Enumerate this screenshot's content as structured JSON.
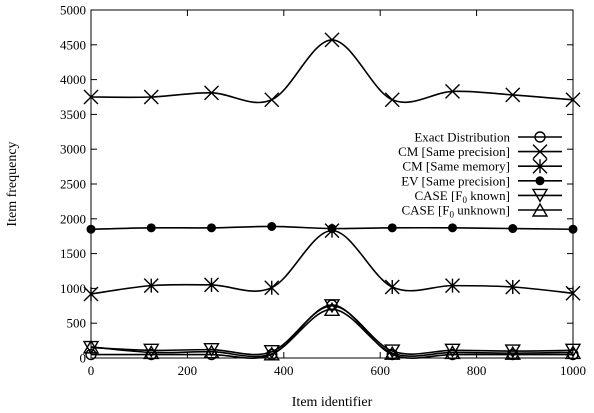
{
  "chart_data": {
    "type": "line",
    "title": "",
    "xlabel": "Item identifier",
    "ylabel": "Item frequency",
    "xlim": [
      0,
      1000
    ],
    "ylim": [
      0,
      5000
    ],
    "xticks": [
      0,
      200,
      400,
      600,
      800,
      1000
    ],
    "yticks": [
      0,
      500,
      1000,
      1500,
      2000,
      2500,
      3000,
      3500,
      4000,
      4500,
      5000
    ],
    "grid": false,
    "legend_position": "right",
    "series": [
      {
        "name": "Exact Distribution",
        "marker": "circle-open",
        "x": [
          0,
          125,
          250,
          375,
          500,
          625,
          750,
          875,
          1000
        ],
        "values": [
          50,
          50,
          50,
          50,
          760,
          50,
          50,
          50,
          50
        ]
      },
      {
        "name": "CM [Same precision]",
        "marker": "x",
        "x": [
          0,
          125,
          250,
          375,
          500,
          625,
          750,
          875,
          1000
        ],
        "values": [
          3750,
          3750,
          3810,
          3710,
          4570,
          3710,
          3830,
          3780,
          3710
        ]
      },
      {
        "name": "CM [Same memory]",
        "marker": "asterisk",
        "x": [
          0,
          125,
          250,
          375,
          500,
          625,
          750,
          875,
          1000
        ],
        "values": [
          920,
          1040,
          1050,
          1010,
          1830,
          1020,
          1040,
          1020,
          930
        ]
      },
      {
        "name": "EV [Same precision]",
        "marker": "circle-filled",
        "x": [
          0,
          125,
          250,
          375,
          500,
          625,
          750,
          875,
          1000
        ],
        "values": [
          1850,
          1870,
          1870,
          1890,
          1860,
          1870,
          1870,
          1860,
          1850
        ]
      },
      {
        "name": "CASE [F0 known]",
        "name_html_sub": "0",
        "marker": "triangle-down-open",
        "x": [
          0,
          125,
          250,
          375,
          500,
          625,
          750,
          875,
          1000
        ],
        "values": [
          150,
          110,
          120,
          90,
          750,
          100,
          110,
          100,
          110
        ]
      },
      {
        "name": "CASE [F0 unknown]",
        "marker": "triangle-up-open",
        "x": [
          0,
          125,
          250,
          375,
          500,
          625,
          750,
          875,
          1000
        ],
        "values": [
          160,
          80,
          90,
          60,
          700,
          70,
          80,
          70,
          80
        ]
      }
    ],
    "legend": [
      {
        "pre": "Exact Distribution",
        "sub": "",
        "post": ""
      },
      {
        "pre": "CM [Same precision]",
        "sub": "",
        "post": ""
      },
      {
        "pre": "CM [Same memory]",
        "sub": "",
        "post": ""
      },
      {
        "pre": "EV [Same precision]",
        "sub": "",
        "post": ""
      },
      {
        "pre": "CASE [F",
        "sub": "0",
        "post": " known]"
      },
      {
        "pre": "CASE [F",
        "sub": "0",
        "post": " unknown]"
      }
    ]
  }
}
